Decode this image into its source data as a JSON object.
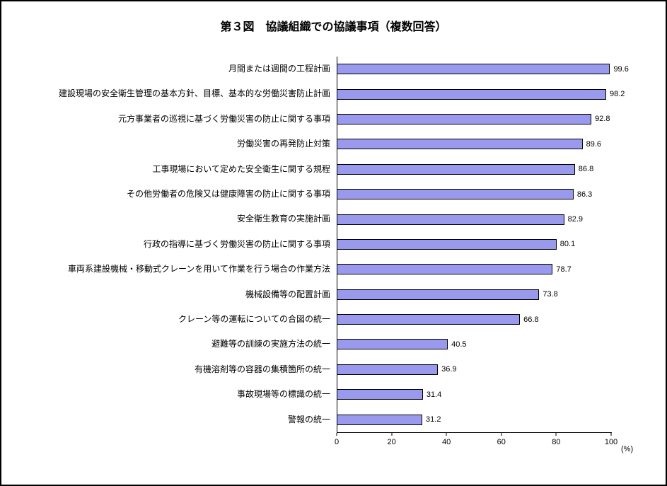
{
  "title": "第３図　協議組織での協議事項（複数回答）",
  "chart_data": {
    "type": "bar",
    "orientation": "horizontal",
    "title": "第３図　協議組織での協議事項（複数回答）",
    "categories": [
      "月間または週間の工程計画",
      "建設現場の安全衛生管理の基本方針、目標、基本的な労働災害防止計画",
      "元方事業者の巡視に基づく労働災害の防止に関する事項",
      "労働災害の再発防止対策",
      "工事現場において定めた安全衛生に関する規程",
      "その他労働者の危険又は健康障害の防止に関する事項",
      "安全衛生教育の実施計画",
      "行政の指導に基づく労働災害の防止に関する事項",
      "車両系建設機械・移動式クレーンを用いて作業を行う場合の作業方法",
      "機械設備等の配置計画",
      "クレーン等の運転についての合図の統一",
      "避難等の訓練の実施方法の統一",
      "有機溶剤等の容器の集積箇所の統一",
      "事故現場等の標識の統一",
      "警報の統一"
    ],
    "values": [
      99.6,
      98.2,
      92.8,
      89.6,
      86.8,
      86.3,
      82.9,
      80.1,
      78.7,
      73.8,
      66.8,
      40.5,
      36.9,
      31.4,
      31.2
    ],
    "xlabel": "(%)",
    "xlim": [
      0,
      100
    ],
    "xticks": [
      0,
      20,
      40,
      60,
      80,
      100
    ],
    "bar_color": "#9999ee",
    "bar_border": "#000000",
    "grid": false,
    "legend": false
  }
}
